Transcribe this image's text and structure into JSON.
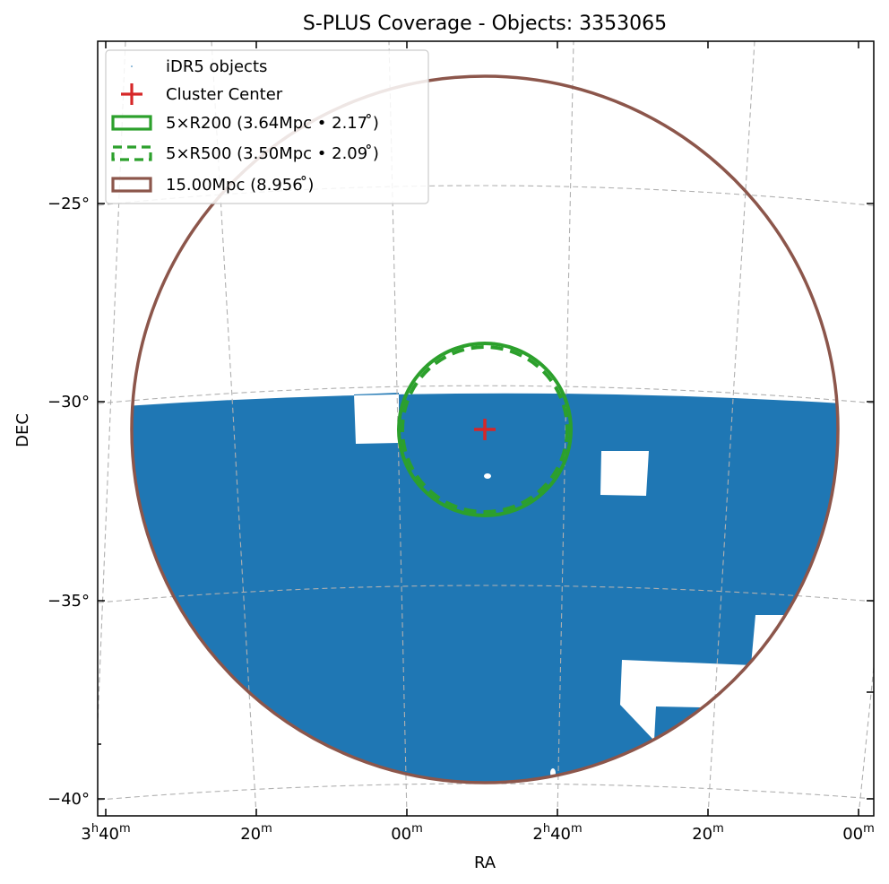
{
  "chart_data": {
    "type": "scatter",
    "title": "S-PLUS Coverage - Objects: 3353065",
    "xlabel": "RA",
    "ylabel": "DEC",
    "projection": "sky (RA/DEC), RA increasing to the left",
    "grid": true,
    "x_ticks": [
      {
        "h": "3",
        "hsup": "h",
        "m": "40",
        "msup": "m"
      },
      {
        "h": "",
        "hsup": "",
        "m": "20",
        "msup": "m"
      },
      {
        "h": "",
        "hsup": "",
        "m": "00",
        "msup": "m"
      },
      {
        "h": "2",
        "hsup": "h",
        "m": "40",
        "msup": "m"
      },
      {
        "h": "",
        "hsup": "",
        "m": "20",
        "msup": "m"
      },
      {
        "h": "",
        "hsup": "",
        "m": "00",
        "msup": "m"
      }
    ],
    "y_ticks": [
      "−25°",
      "−30°",
      "−35°",
      "−40°"
    ],
    "y_values": [
      -25,
      -30,
      -35,
      -40
    ],
    "center": {
      "ra_deg": 41.7,
      "dec_deg": -30.7
    },
    "legend_placement": "top-left",
    "legend": [
      {
        "label": "iDR5 objects",
        "kind": "points",
        "color": "#1f77b4"
      },
      {
        "label": "Cluster Center",
        "kind": "plus",
        "color": "#d62728"
      },
      {
        "label": "5×R200 (3.64Mpc • 2.17$^\\circ$)",
        "display": "5×R200 (3.64Mpc • 2.17 ̊)",
        "kind": "circle-solid",
        "color": "#2ca02c",
        "radius_deg": 2.17
      },
      {
        "label": "5×R500 (3.50Mpc • 2.09$^\\circ$)",
        "display": "5×R500 (3.50Mpc • 2.09 ̊)",
        "kind": "circle-dashed",
        "color": "#2ca02c",
        "radius_deg": 2.09
      },
      {
        "label": "15.00Mpc (8.956$^\\circ$)",
        "display": "15.00Mpc (8.956 ̊)",
        "kind": "circle-solid",
        "color": "#8c564b",
        "radius_deg": 8.956
      }
    ],
    "colors": {
      "objects": "#1f77b4",
      "center": "#d62728",
      "r200": "#2ca02c",
      "r500": "#2ca02c",
      "big": "#8c564b",
      "grid": "#b0b0b0"
    }
  }
}
